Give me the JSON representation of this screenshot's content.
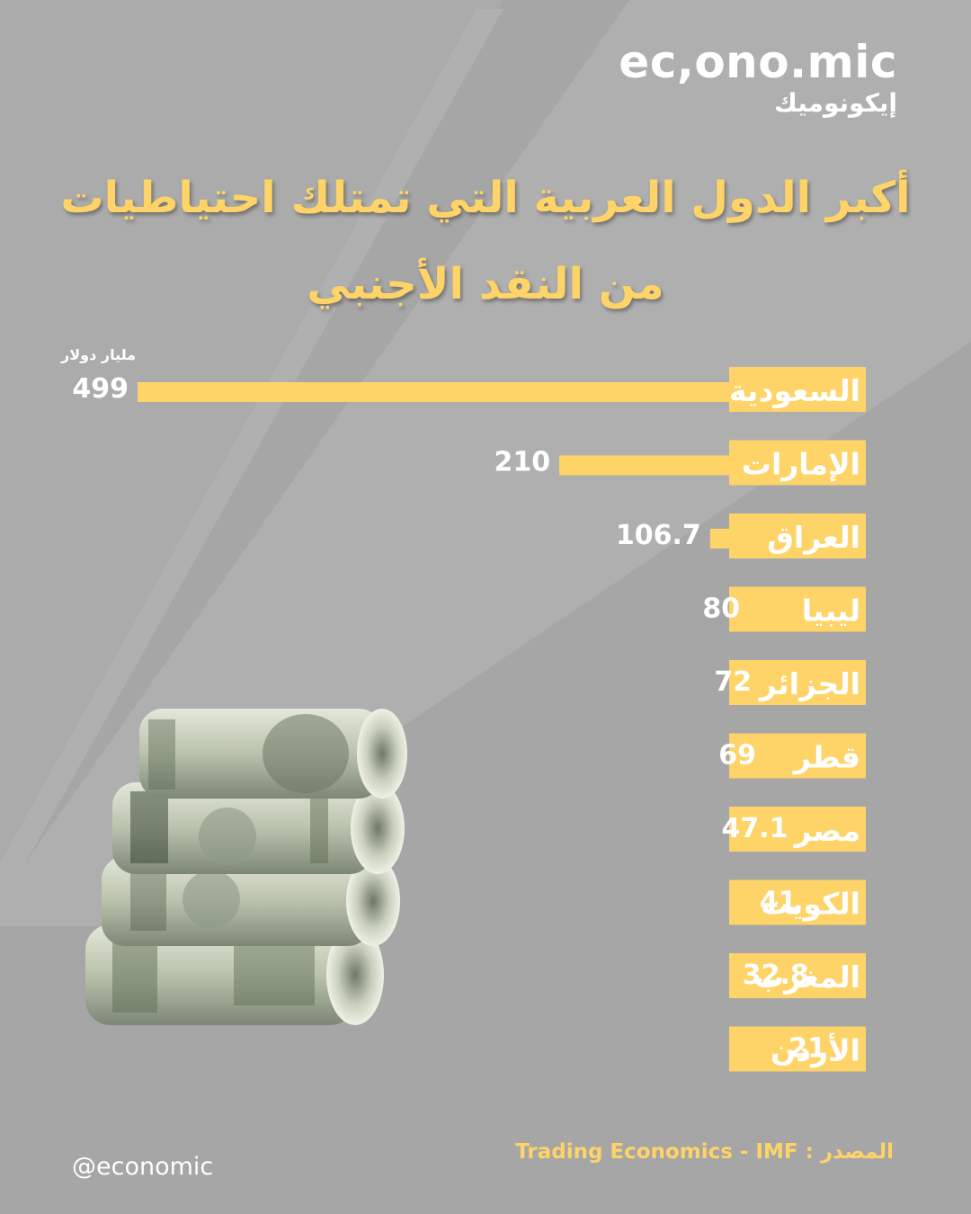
{
  "brand": {
    "name_latin": "ec,ono.mic",
    "name_arabic": "إيكونوميك"
  },
  "title_line1": "أكبر الدول العربية التي تمتلك احتياطيات",
  "title_line2": "من النقد الأجنبي",
  "chart_data": {
    "type": "bar",
    "orientation": "horizontal",
    "unit_label": "مليار دولار",
    "categories": [
      "السعودية",
      "الإمارات",
      "العراق",
      "ليبيا",
      "الجزائر",
      "قطر",
      "مصر",
      "الكويت",
      "المغرب",
      "الأردن"
    ],
    "values": [
      499,
      210,
      106.7,
      80,
      72,
      69,
      47.1,
      41,
      32.8,
      21
    ],
    "value_labels": [
      "499",
      "210",
      "106.7",
      "80",
      "72",
      "69",
      "47.1",
      "41",
      "32.8",
      "21"
    ],
    "xlim": [
      0,
      499
    ],
    "bar_color": "#fed468",
    "grid": false,
    "legend": "none"
  },
  "footer": {
    "handle": "@economic",
    "source_label": "المصدر :",
    "source_value": "Trading Economics - IMF"
  },
  "colors": {
    "background": "#a6a6a6",
    "accent": "#fed468",
    "text": "#ffffff"
  }
}
